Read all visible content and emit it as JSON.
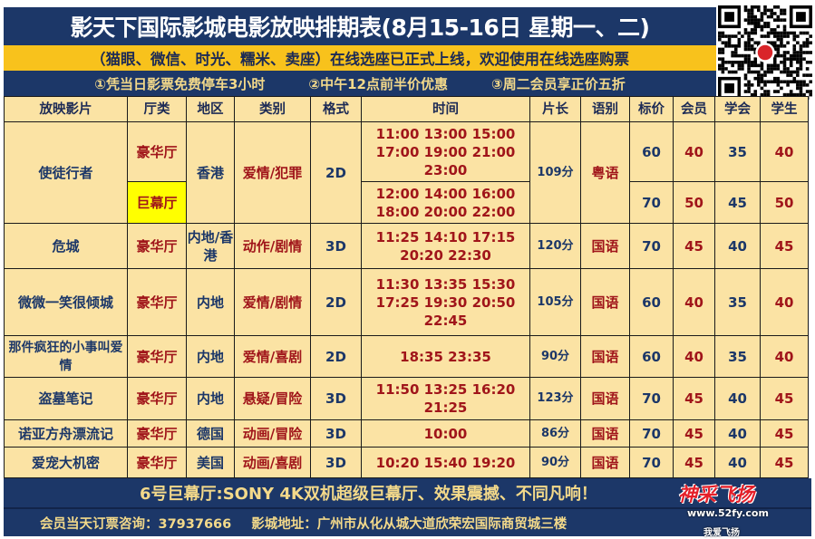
{
  "title": "影天下国际影城电影放映排期表(8月15-16日 星期一、二)",
  "notice": "（猫眼、微信、时光、糯米、卖座）在线选座已正式上线，欢迎使用在线选座购票",
  "promos": [
    "①凭当日影票免费停车3小时",
    "②中午12点前半价优惠",
    "③周二会员享正价五折"
  ],
  "table": {
    "headers": [
      "放映影片",
      "厅类",
      "地区",
      "类别",
      "格式",
      "时间",
      "片长",
      "语别",
      "标价",
      "会员",
      "学会",
      "学生"
    ],
    "movies": [
      {
        "title": "使徒行者",
        "region": "香港",
        "genre": "爱情/犯罪",
        "format": "2D",
        "length": "109分",
        "language": "粤语",
        "showings": [
          {
            "hall": "豪华厅",
            "times": [
              "11:00 13:00 15:00",
              "17:00 19:00 21:00",
              "23:00"
            ],
            "prices": [
              "60",
              "40",
              "35",
              "40"
            ]
          },
          {
            "hall": "巨幕厅",
            "highlight": true,
            "times": [
              "12:00 14:00 16:00",
              "18:00 20:00 22:00"
            ],
            "prices": [
              "70",
              "50",
              "45",
              "50"
            ]
          }
        ]
      },
      {
        "title": "危城",
        "region": "内地/香港",
        "genre": "动作/剧情",
        "format": "3D",
        "length": "120分",
        "language": "国语",
        "showings": [
          {
            "hall": "豪华厅",
            "times": [
              "11:25 14:10 17:15",
              "20:20 22:30"
            ],
            "prices": [
              "70",
              "45",
              "40",
              "45"
            ]
          }
        ]
      },
      {
        "title": "微微一笑很倾城",
        "region": "内地",
        "genre": "爱情/剧情",
        "format": "2D",
        "length": "105分",
        "language": "国语",
        "showings": [
          {
            "hall": "豪华厅",
            "times": [
              "11:30 13:35 15:30",
              "17:25 19:30 20:50",
              "22:45"
            ],
            "prices": [
              "60",
              "40",
              "35",
              "40"
            ]
          }
        ]
      },
      {
        "title": "那件疯狂的小事叫爱情",
        "region": "内地",
        "genre": "爱情/喜剧",
        "format": "2D",
        "length": "90分",
        "language": "国语",
        "showings": [
          {
            "hall": "豪华厅",
            "times": [
              "18:35 23:35"
            ],
            "prices": [
              "60",
              "40",
              "35",
              "40"
            ]
          }
        ]
      },
      {
        "title": "盗墓笔记",
        "region": "内地",
        "genre": "悬疑/冒险",
        "format": "3D",
        "length": "123分",
        "language": "国语",
        "showings": [
          {
            "hall": "豪华厅",
            "times": [
              "11:50 13:25 16:20",
              "21:25"
            ],
            "prices": [
              "70",
              "45",
              "40",
              "45"
            ]
          }
        ]
      },
      {
        "title": "诺亚方舟漂流记",
        "region": "德国",
        "genre": "动画/冒险",
        "format": "3D",
        "length": "86分",
        "language": "国语",
        "showings": [
          {
            "hall": "豪华厅",
            "times": [
              "10:00"
            ],
            "prices": [
              "70",
              "45",
              "40",
              "45"
            ]
          }
        ]
      },
      {
        "title": "爱宠大机密",
        "region": "美国",
        "genre": "动画/喜剧",
        "format": "3D",
        "length": "90分",
        "language": "国语",
        "showings": [
          {
            "hall": "豪华厅",
            "times": [
              "10:20 15:40 19:20"
            ],
            "prices": [
              "70",
              "45",
              "40",
              "45"
            ]
          }
        ]
      }
    ]
  },
  "banner": "6号巨幕厅:SONY 4K双机超级巨幕厅、效果震撼、不同凡响！",
  "footer": {
    "hotline": "会员当天订票咨询：37937666",
    "address": "影城地址：广州市从化从城大道欣荣宏国际商贸城三楼"
  },
  "watermark": {
    "brand": "神采飞扬",
    "site": "www.52fy.com",
    "tag": "我爱飞扬"
  },
  "colors": {
    "navy": "#1c3768",
    "orange_band": "#f8c21c",
    "cell": "#fbe3a4",
    "red_text": "#a0151a",
    "highlight": "#ffff00"
  }
}
